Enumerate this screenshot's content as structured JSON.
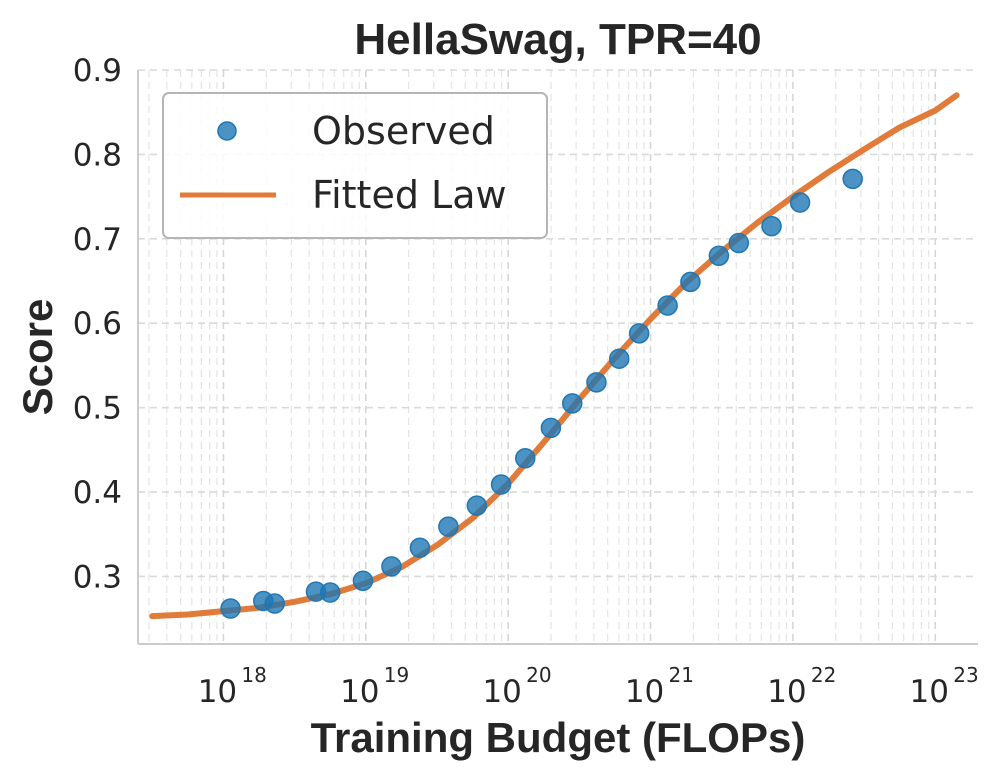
{
  "chart_data": {
    "type": "scatter",
    "title": "HellaSwag, TPR=40",
    "xlabel": "Training Budget (FLOPs)",
    "ylabel": "Score",
    "xscale": "log",
    "xlim_log10": [
      17.4,
      23.3
    ],
    "ylim": [
      0.22,
      0.9
    ],
    "x_ticks_log10": [
      18,
      19,
      20,
      21,
      22,
      23
    ],
    "x_tick_base": "10",
    "y_ticks": [
      0.3,
      0.4,
      0.5,
      0.6,
      0.7,
      0.8,
      0.9
    ],
    "y_tick_labels": [
      "0.3",
      "0.4",
      "0.5",
      "0.6",
      "0.7",
      "0.8",
      "0.9"
    ],
    "grid": true,
    "legend_position": "upper-left",
    "series": [
      {
        "name": "Observed",
        "kind": "scatter",
        "color": "#1f77b4",
        "points": [
          {
            "log10_flops": 18.05,
            "score": 0.262
          },
          {
            "log10_flops": 18.28,
            "score": 0.271
          },
          {
            "log10_flops": 18.36,
            "score": 0.268
          },
          {
            "log10_flops": 18.65,
            "score": 0.282
          },
          {
            "log10_flops": 18.75,
            "score": 0.281
          },
          {
            "log10_flops": 18.98,
            "score": 0.295
          },
          {
            "log10_flops": 19.18,
            "score": 0.312
          },
          {
            "log10_flops": 19.38,
            "score": 0.334
          },
          {
            "log10_flops": 19.58,
            "score": 0.359
          },
          {
            "log10_flops": 19.78,
            "score": 0.384
          },
          {
            "log10_flops": 19.95,
            "score": 0.409
          },
          {
            "log10_flops": 20.12,
            "score": 0.44
          },
          {
            "log10_flops": 20.3,
            "score": 0.476
          },
          {
            "log10_flops": 20.45,
            "score": 0.505
          },
          {
            "log10_flops": 20.62,
            "score": 0.53
          },
          {
            "log10_flops": 20.78,
            "score": 0.558
          },
          {
            "log10_flops": 20.92,
            "score": 0.588
          },
          {
            "log10_flops": 21.12,
            "score": 0.621
          },
          {
            "log10_flops": 21.28,
            "score": 0.649
          },
          {
            "log10_flops": 21.48,
            "score": 0.68
          },
          {
            "log10_flops": 21.62,
            "score": 0.695
          },
          {
            "log10_flops": 21.85,
            "score": 0.715
          },
          {
            "log10_flops": 22.05,
            "score": 0.743
          },
          {
            "log10_flops": 22.42,
            "score": 0.771
          }
        ]
      },
      {
        "name": "Fitted Law",
        "kind": "line",
        "color": "#e07b39",
        "points": [
          {
            "log10_flops": 17.5,
            "score": 0.253
          },
          {
            "log10_flops": 17.75,
            "score": 0.255
          },
          {
            "log10_flops": 18.0,
            "score": 0.259
          },
          {
            "log10_flops": 18.25,
            "score": 0.263
          },
          {
            "log10_flops": 18.5,
            "score": 0.27
          },
          {
            "log10_flops": 18.75,
            "score": 0.279
          },
          {
            "log10_flops": 19.0,
            "score": 0.292
          },
          {
            "log10_flops": 19.25,
            "score": 0.311
          },
          {
            "log10_flops": 19.5,
            "score": 0.337
          },
          {
            "log10_flops": 19.75,
            "score": 0.369
          },
          {
            "log10_flops": 20.0,
            "score": 0.41
          },
          {
            "log10_flops": 20.25,
            "score": 0.459
          },
          {
            "log10_flops": 20.5,
            "score": 0.51
          },
          {
            "log10_flops": 20.75,
            "score": 0.559
          },
          {
            "log10_flops": 21.0,
            "score": 0.605
          },
          {
            "log10_flops": 21.25,
            "score": 0.648
          },
          {
            "log10_flops": 21.5,
            "score": 0.685
          },
          {
            "log10_flops": 21.75,
            "score": 0.719
          },
          {
            "log10_flops": 22.0,
            "score": 0.75
          },
          {
            "log10_flops": 22.25,
            "score": 0.779
          },
          {
            "log10_flops": 22.5,
            "score": 0.806
          },
          {
            "log10_flops": 22.75,
            "score": 0.832
          },
          {
            "log10_flops": 23.0,
            "score": 0.852
          },
          {
            "log10_flops": 23.15,
            "score": 0.87
          }
        ]
      }
    ]
  }
}
